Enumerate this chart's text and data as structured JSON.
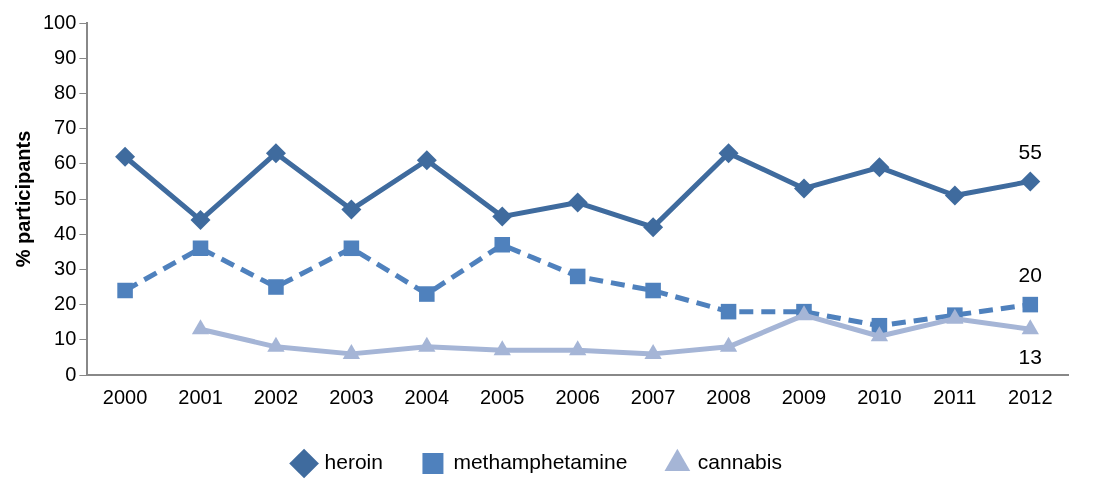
{
  "chart_data": {
    "type": "line",
    "ylabel": "% participants",
    "categories": [
      "2000",
      "2001",
      "2002",
      "2003",
      "2004",
      "2005",
      "2006",
      "2007",
      "2008",
      "2009",
      "2010",
      "2011",
      "2012"
    ],
    "series": [
      {
        "name": "heroin",
        "color": "#3f6b9e",
        "marker": "diamond",
        "line_style": "solid",
        "values": [
          62,
          44,
          63,
          47,
          61,
          45,
          49,
          42,
          63,
          53,
          59,
          51,
          55
        ],
        "value_labels": [
          null,
          null,
          null,
          null,
          null,
          null,
          null,
          null,
          null,
          null,
          null,
          null,
          "55"
        ]
      },
      {
        "name": "methamphetamine",
        "color": "#4f81bd",
        "marker": "square",
        "line_style": "dashed",
        "values": [
          24,
          36,
          25,
          36,
          23,
          37,
          28,
          24,
          18,
          18,
          14,
          17,
          20
        ],
        "value_labels": [
          null,
          null,
          null,
          null,
          null,
          null,
          null,
          null,
          null,
          null,
          null,
          null,
          "20"
        ]
      },
      {
        "name": "cannabis",
        "color": "#a5b5d6",
        "marker": "triangle",
        "line_style": "solid",
        "values": [
          null,
          13,
          8,
          6,
          8,
          7,
          7,
          6,
          8,
          17,
          11,
          16,
          13
        ],
        "value_labels": [
          null,
          null,
          null,
          null,
          null,
          null,
          null,
          null,
          null,
          null,
          null,
          null,
          "13"
        ]
      }
    ],
    "ylim": [
      0,
      100
    ],
    "yticks": [
      0,
      10,
      20,
      30,
      40,
      50,
      60,
      70,
      80,
      90,
      100
    ],
    "grid": false,
    "legend": "bottom"
  }
}
